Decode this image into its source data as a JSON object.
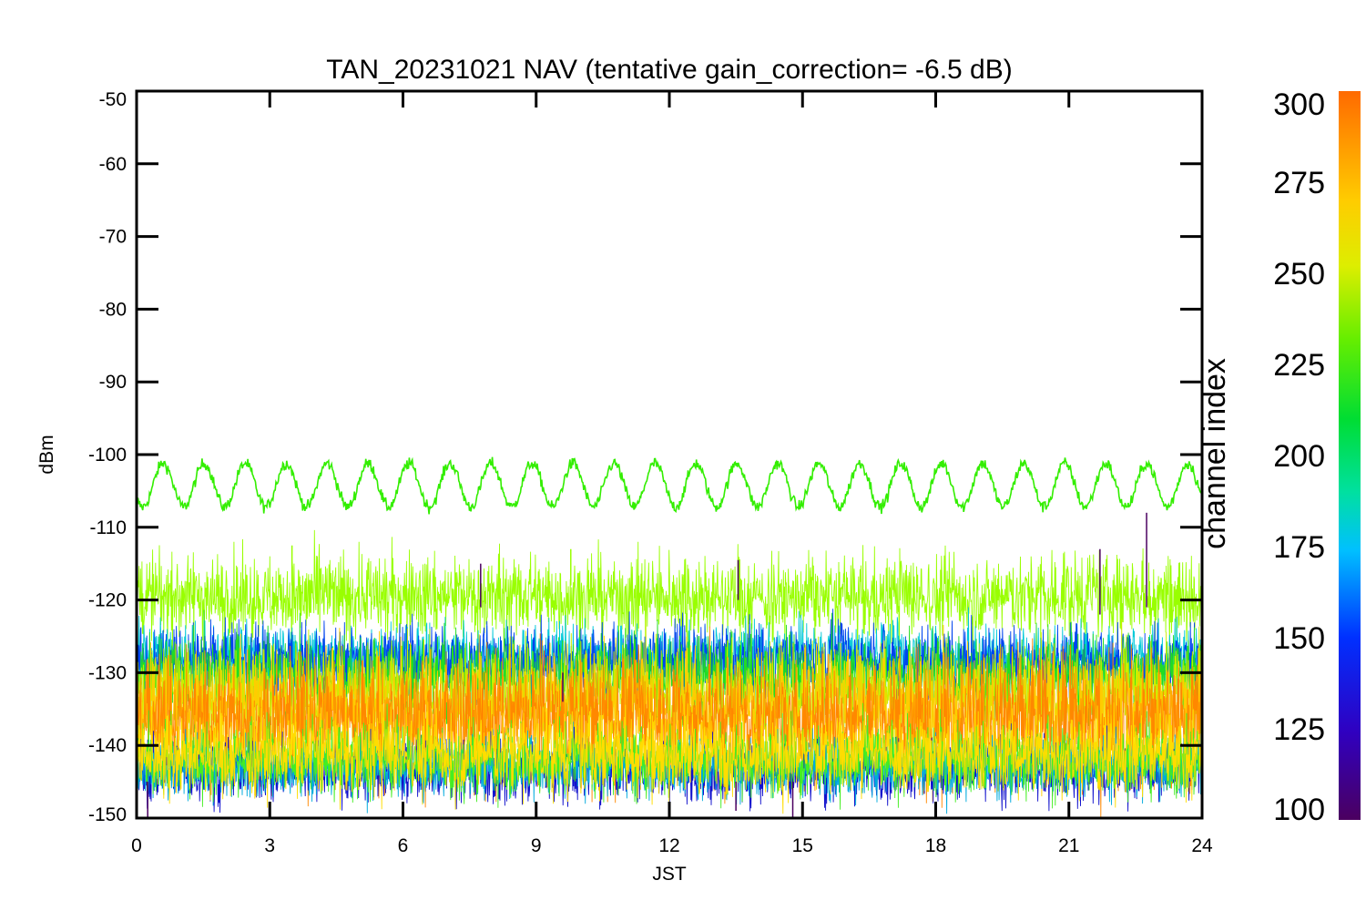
{
  "chart_data": {
    "type": "line",
    "title": "TAN_20231021 NAV (tentative gain_correction= -6.5 dB)",
    "xlabel": "JST",
    "ylabel": "dBm",
    "xlim": [
      0,
      24
    ],
    "ylim": [
      -150,
      -50
    ],
    "x_ticks": [
      "0",
      "3",
      "6",
      "9",
      "12",
      "15",
      "18",
      "21",
      "24"
    ],
    "y_ticks": [
      "-50",
      "-60",
      "-70",
      "-80",
      "-90",
      "-100",
      "-110",
      "-120",
      "-130",
      "-140",
      "-150"
    ],
    "grid": false,
    "colorbar": {
      "label": "channel index",
      "range": [
        100,
        300
      ],
      "ticks": [
        "300",
        "275",
        "250",
        "225",
        "200",
        "175",
        "150",
        "125",
        "100"
      ],
      "colormap": "rainbow"
    },
    "series": [
      {
        "channel": 250,
        "color": "#33ee00",
        "pattern": "sine",
        "center": -104.2,
        "amplitude": 3.0,
        "cycles": 26,
        "noise": 0.4
      },
      {
        "channel": 262,
        "color": "#99ff00",
        "pattern": "noise",
        "center": -119.5,
        "spread": 3.5
      },
      {
        "channel": 175,
        "color": "#00c8d8",
        "pattern": "noise",
        "center": -128.0,
        "spread": 3.0
      },
      {
        "channel": 140,
        "color": "#0044ee",
        "pattern": "noise",
        "center": -128.5,
        "spread": 3.0
      },
      {
        "channel": 232,
        "color": "#22dd22",
        "pattern": "noise",
        "center": -130.5,
        "spread": 3.5
      },
      {
        "channel": 270,
        "color": "#ccee00",
        "pattern": "noise",
        "center": -133.0,
        "spread": 4.0
      },
      {
        "channel": 280,
        "color": "#ffcc00",
        "pattern": "noise",
        "center": -135.0,
        "spread": 5.0
      },
      {
        "channel": 295,
        "color": "#ff8800",
        "pattern": "noise",
        "center": -136.5,
        "spread": 5.5
      },
      {
        "channel": 120,
        "color": "#1010cc",
        "pattern": "noise",
        "center": -143.5,
        "spread": 2.5
      },
      {
        "channel": 165,
        "color": "#00aadd",
        "pattern": "noise",
        "center": -143.0,
        "spread": 2.5
      },
      {
        "channel": 238,
        "color": "#44ee22",
        "pattern": "noise",
        "center": -142.0,
        "spread": 3.0
      },
      {
        "channel": 285,
        "color": "#ffdd00",
        "pattern": "noise",
        "center": -141.0,
        "spread": 3.5
      }
    ],
    "spikes": [
      {
        "x": 22.75,
        "y_from": -121,
        "y_to": -108,
        "color": "#4b0060"
      },
      {
        "x": 21.7,
        "y_from": -122,
        "y_to": -113,
        "color": "#4b0060"
      },
      {
        "x": 13.55,
        "y_from": -120,
        "y_to": -114.5,
        "color": "#4b0060"
      },
      {
        "x": 7.75,
        "y_from": -121,
        "y_to": -115,
        "color": "#4b0060"
      },
      {
        "x": 9.78,
        "y_from": -118,
        "y_to": -113,
        "color": "#99ff00"
      },
      {
        "x": 3.5,
        "y_from": -118,
        "y_to": -112.5,
        "color": "#99ff00"
      },
      {
        "x": 14.78,
        "y_from": -145,
        "y_to": -150,
        "color": "#4b0060"
      },
      {
        "x": 0.25,
        "y_from": -145,
        "y_to": -150,
        "color": "#4b0060"
      },
      {
        "x": 13.5,
        "y_from": -145,
        "y_to": -149,
        "color": "#4b0060"
      },
      {
        "x": 9.6,
        "y_from": -130,
        "y_to": -134,
        "color": "#4b0060"
      }
    ]
  }
}
